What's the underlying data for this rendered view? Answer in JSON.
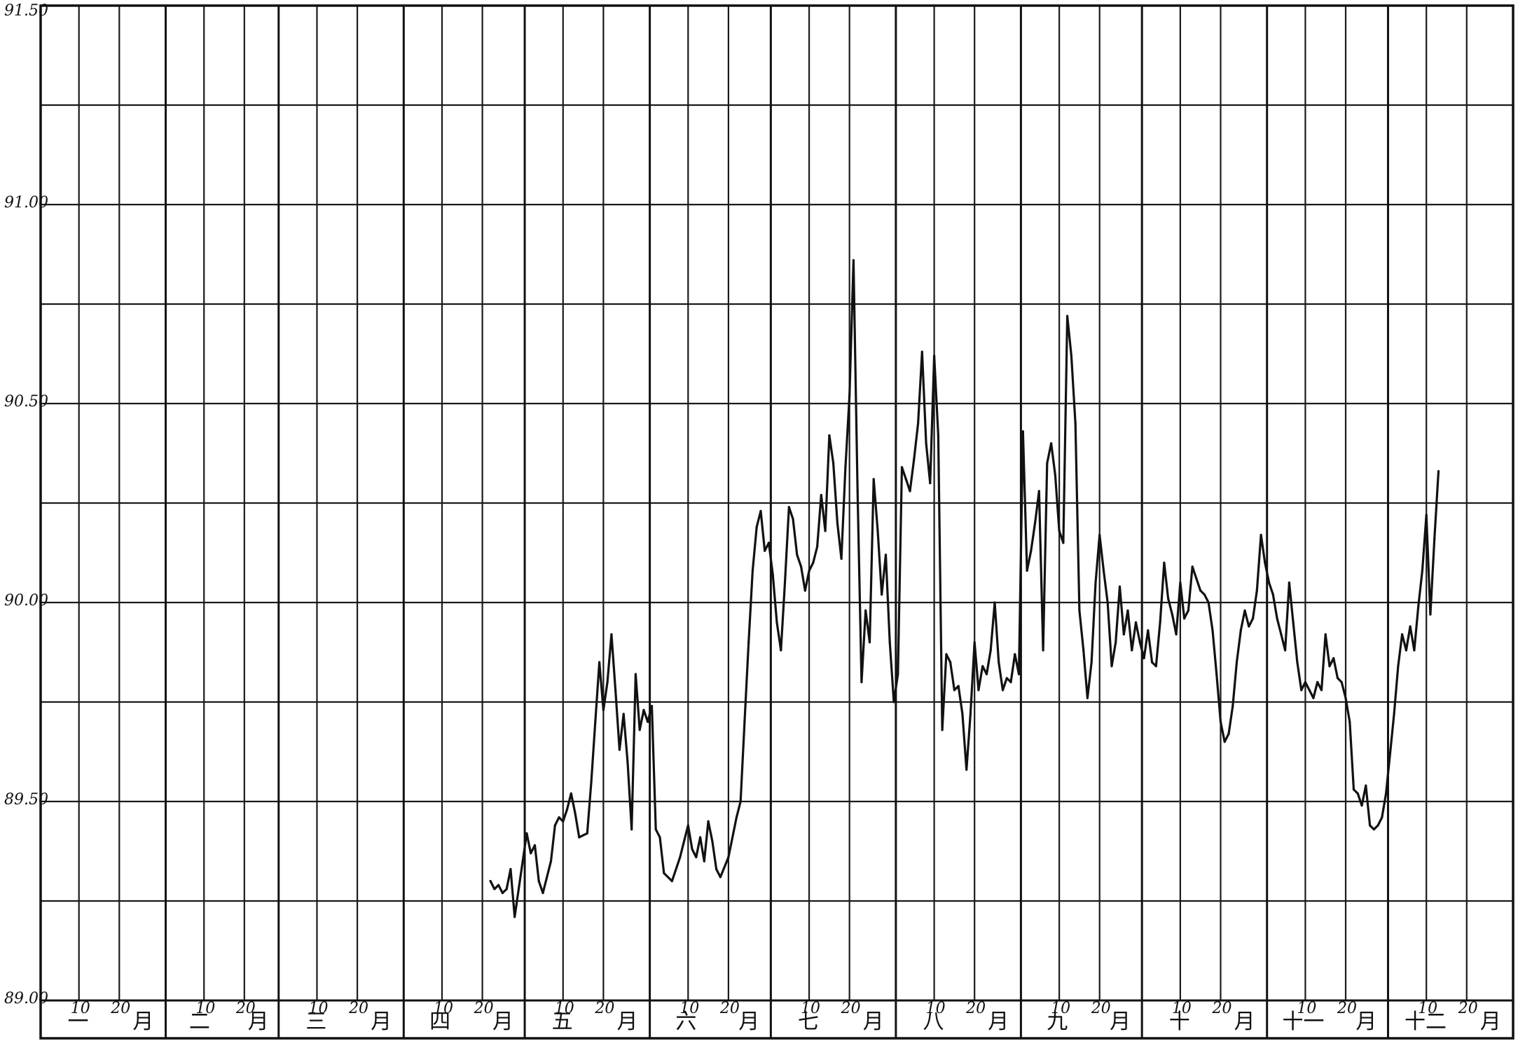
{
  "chart_data": {
    "type": "line",
    "title": "",
    "xlabel": "",
    "ylabel": "",
    "ylim": [
      89.0,
      91.5
    ],
    "yticks": [
      {
        "value": 91.5,
        "label": "91.50"
      },
      {
        "value": 91.0,
        "label": "91.00"
      },
      {
        "value": 90.5,
        "label": "90.50"
      },
      {
        "value": 90.0,
        "label": "90.00"
      },
      {
        "value": 89.5,
        "label": "89.50"
      },
      {
        "value": 89.0,
        "label": "89.00"
      }
    ],
    "ygrid_step": 0.25,
    "xlim": [
      0,
      365
    ],
    "day_ticks": [
      "10",
      "20"
    ],
    "month_word": "月",
    "months": [
      {
        "numeral": "一",
        "start_day": 0,
        "days": 31
      },
      {
        "numeral": "二",
        "start_day": 31,
        "days": 28
      },
      {
        "numeral": "三",
        "start_day": 59,
        "days": 31
      },
      {
        "numeral": "四",
        "start_day": 90,
        "days": 30
      },
      {
        "numeral": "五",
        "start_day": 120,
        "days": 31
      },
      {
        "numeral": "六",
        "start_day": 151,
        "days": 30
      },
      {
        "numeral": "七",
        "start_day": 181,
        "days": 31
      },
      {
        "numeral": "八",
        "start_day": 212,
        "days": 31
      },
      {
        "numeral": "九",
        "start_day": 243,
        "days": 30
      },
      {
        "numeral": "十",
        "start_day": 273,
        "days": 31
      },
      {
        "numeral": "十一",
        "start_day": 304,
        "days": 30
      },
      {
        "numeral": "十二",
        "start_day": 334,
        "days": 31
      }
    ],
    "grid": true,
    "legend": "none",
    "line_color": "#111111",
    "series": [
      {
        "points": [
          [
            112,
            89.3
          ],
          [
            113,
            89.28
          ],
          [
            114,
            89.29
          ],
          [
            115,
            89.27
          ],
          [
            116,
            89.28
          ],
          [
            117,
            89.33
          ],
          [
            118,
            89.21
          ],
          [
            120,
            89.35
          ],
          [
            121,
            89.42
          ],
          [
            122,
            89.37
          ],
          [
            123,
            89.39
          ],
          [
            124,
            89.3
          ],
          [
            125,
            89.27
          ],
          [
            127,
            89.35
          ],
          [
            128,
            89.44
          ],
          [
            129,
            89.46
          ],
          [
            130,
            89.45
          ],
          [
            131,
            89.48
          ],
          [
            132,
            89.52
          ],
          [
            133,
            89.47
          ],
          [
            134,
            89.41
          ],
          [
            136,
            89.42
          ],
          [
            137,
            89.55
          ],
          [
            138,
            89.7
          ],
          [
            139,
            89.85
          ],
          [
            140,
            89.73
          ],
          [
            141,
            89.8
          ],
          [
            142,
            89.92
          ],
          [
            143,
            89.78
          ],
          [
            144,
            89.63
          ],
          [
            145,
            89.72
          ],
          [
            146,
            89.6
          ],
          [
            147,
            89.43
          ],
          [
            148,
            89.82
          ],
          [
            149,
            89.68
          ],
          [
            150,
            89.73
          ],
          [
            151,
            89.7
          ],
          [
            152,
            89.74
          ],
          [
            153,
            89.43
          ],
          [
            154,
            89.41
          ],
          [
            155,
            89.32
          ],
          [
            157,
            89.3
          ],
          [
            159,
            89.36
          ],
          [
            160,
            89.4
          ],
          [
            161,
            89.44
          ],
          [
            162,
            89.38
          ],
          [
            163,
            89.36
          ],
          [
            164,
            89.41
          ],
          [
            165,
            89.35
          ],
          [
            166,
            89.45
          ],
          [
            167,
            89.4
          ],
          [
            168,
            89.33
          ],
          [
            169,
            89.31
          ],
          [
            171,
            89.36
          ],
          [
            173,
            89.46
          ],
          [
            174,
            89.5
          ],
          [
            175,
            89.7
          ],
          [
            176,
            89.9
          ],
          [
            177,
            90.08
          ],
          [
            178,
            90.19
          ],
          [
            179,
            90.23
          ],
          [
            180,
            90.13
          ],
          [
            181,
            90.15
          ],
          [
            182,
            90.07
          ],
          [
            183,
            89.95
          ],
          [
            184,
            89.88
          ],
          [
            185,
            90.05
          ],
          [
            186,
            90.24
          ],
          [
            187,
            90.21
          ],
          [
            188,
            90.12
          ],
          [
            189,
            90.09
          ],
          [
            190,
            90.03
          ],
          [
            191,
            90.08
          ],
          [
            192,
            90.1
          ],
          [
            193,
            90.14
          ],
          [
            194,
            90.27
          ],
          [
            195,
            90.18
          ],
          [
            196,
            90.42
          ],
          [
            197,
            90.35
          ],
          [
            198,
            90.2
          ],
          [
            199,
            90.11
          ],
          [
            200,
            90.34
          ],
          [
            201,
            90.52
          ],
          [
            202,
            90.86
          ],
          [
            203,
            90.28
          ],
          [
            204,
            89.8
          ],
          [
            205,
            89.98
          ],
          [
            206,
            89.9
          ],
          [
            207,
            90.31
          ],
          [
            208,
            90.18
          ],
          [
            209,
            90.02
          ],
          [
            210,
            90.12
          ],
          [
            211,
            89.9
          ],
          [
            212,
            89.75
          ],
          [
            213,
            89.82
          ],
          [
            214,
            90.34
          ],
          [
            215,
            90.31
          ],
          [
            216,
            90.28
          ],
          [
            217,
            90.36
          ],
          [
            218,
            90.45
          ],
          [
            219,
            90.63
          ],
          [
            220,
            90.4
          ],
          [
            221,
            90.3
          ],
          [
            222,
            90.62
          ],
          [
            223,
            90.42
          ],
          [
            224,
            89.68
          ],
          [
            225,
            89.87
          ],
          [
            226,
            89.85
          ],
          [
            227,
            89.78
          ],
          [
            228,
            89.79
          ],
          [
            229,
            89.72
          ],
          [
            230,
            89.58
          ],
          [
            231,
            89.72
          ],
          [
            232,
            89.9
          ],
          [
            233,
            89.78
          ],
          [
            234,
            89.84
          ],
          [
            235,
            89.82
          ],
          [
            236,
            89.88
          ],
          [
            237,
            90.0
          ],
          [
            238,
            89.85
          ],
          [
            239,
            89.78
          ],
          [
            240,
            89.81
          ],
          [
            241,
            89.8
          ],
          [
            242,
            89.87
          ],
          [
            243,
            89.82
          ],
          [
            244,
            90.43
          ],
          [
            245,
            90.08
          ],
          [
            246,
            90.13
          ],
          [
            247,
            90.2
          ],
          [
            248,
            90.28
          ],
          [
            249,
            89.88
          ],
          [
            250,
            90.35
          ],
          [
            251,
            90.4
          ],
          [
            252,
            90.32
          ],
          [
            253,
            90.18
          ],
          [
            254,
            90.15
          ],
          [
            255,
            90.72
          ],
          [
            256,
            90.62
          ],
          [
            257,
            90.45
          ],
          [
            258,
            89.98
          ],
          [
            259,
            89.88
          ],
          [
            260,
            89.76
          ],
          [
            261,
            89.85
          ],
          [
            262,
            90.05
          ],
          [
            263,
            90.17
          ],
          [
            264,
            90.08
          ],
          [
            265,
            90.0
          ],
          [
            266,
            89.84
          ],
          [
            267,
            89.9
          ],
          [
            268,
            90.04
          ],
          [
            269,
            89.92
          ],
          [
            270,
            89.98
          ],
          [
            271,
            89.88
          ],
          [
            272,
            89.95
          ],
          [
            273,
            89.9
          ],
          [
            274,
            89.86
          ],
          [
            275,
            89.93
          ],
          [
            276,
            89.85
          ],
          [
            277,
            89.84
          ],
          [
            278,
            89.95
          ],
          [
            279,
            90.1
          ],
          [
            280,
            90.01
          ],
          [
            281,
            89.97
          ],
          [
            282,
            89.92
          ],
          [
            283,
            90.05
          ],
          [
            284,
            89.96
          ],
          [
            285,
            89.98
          ],
          [
            286,
            90.09
          ],
          [
            287,
            90.06
          ],
          [
            288,
            90.03
          ],
          [
            289,
            90.02
          ],
          [
            290,
            90.0
          ],
          [
            291,
            89.93
          ],
          [
            292,
            89.82
          ],
          [
            293,
            89.7
          ],
          [
            294,
            89.65
          ],
          [
            295,
            89.67
          ],
          [
            296,
            89.74
          ],
          [
            297,
            89.85
          ],
          [
            298,
            89.93
          ],
          [
            299,
            89.98
          ],
          [
            300,
            89.94
          ],
          [
            301,
            89.96
          ],
          [
            302,
            90.03
          ],
          [
            303,
            90.17
          ],
          [
            304,
            90.1
          ],
          [
            305,
            90.05
          ],
          [
            306,
            90.02
          ],
          [
            307,
            89.96
          ],
          [
            308,
            89.92
          ],
          [
            309,
            89.88
          ],
          [
            310,
            90.05
          ],
          [
            311,
            89.95
          ],
          [
            312,
            89.85
          ],
          [
            313,
            89.78
          ],
          [
            314,
            89.8
          ],
          [
            315,
            89.78
          ],
          [
            316,
            89.76
          ],
          [
            317,
            89.8
          ],
          [
            318,
            89.78
          ],
          [
            319,
            89.92
          ],
          [
            320,
            89.84
          ],
          [
            321,
            89.86
          ],
          [
            322,
            89.81
          ],
          [
            323,
            89.8
          ],
          [
            324,
            89.76
          ],
          [
            325,
            89.7
          ],
          [
            326,
            89.53
          ],
          [
            327,
            89.52
          ],
          [
            328,
            89.49
          ],
          [
            329,
            89.54
          ],
          [
            330,
            89.44
          ],
          [
            331,
            89.43
          ],
          [
            332,
            89.44
          ],
          [
            333,
            89.46
          ],
          [
            334,
            89.52
          ],
          [
            335,
            89.62
          ],
          [
            336,
            89.72
          ],
          [
            337,
            89.84
          ],
          [
            338,
            89.92
          ],
          [
            339,
            89.88
          ],
          [
            340,
            89.94
          ],
          [
            341,
            89.88
          ],
          [
            342,
            89.99
          ],
          [
            343,
            90.08
          ],
          [
            344,
            90.22
          ],
          [
            345,
            89.97
          ],
          [
            346,
            90.16
          ],
          [
            347,
            90.33
          ]
        ]
      }
    ]
  }
}
